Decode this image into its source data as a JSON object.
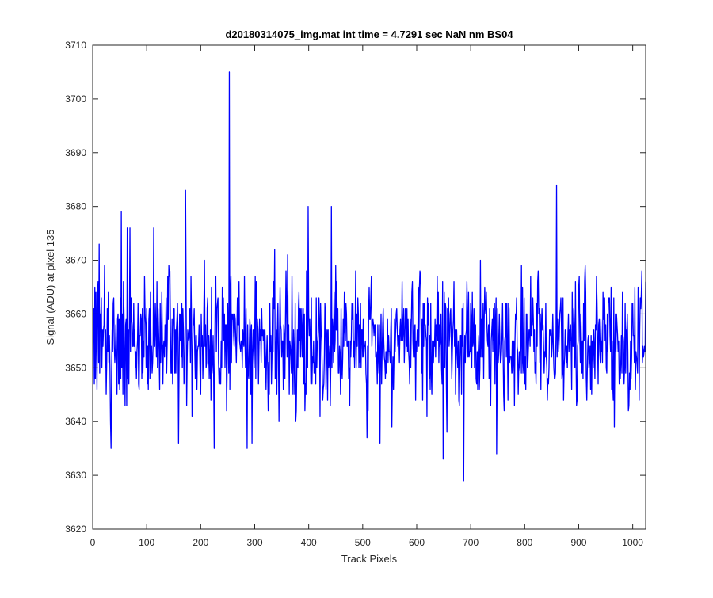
{
  "chart_data": {
    "type": "line",
    "title": "d20180314075_img.mat int time = 4.7291 sec  NaN nm BS04",
    "xlabel": "Track Pixels",
    "ylabel": "Signal (ADU) at pixel 135",
    "xlim": [
      0,
      1024
    ],
    "ylim": [
      3620,
      3710
    ],
    "xticks": [
      0,
      100,
      200,
      300,
      400,
      500,
      600,
      700,
      800,
      900,
      1000
    ],
    "yticks": [
      3620,
      3630,
      3640,
      3650,
      3660,
      3670,
      3680,
      3690,
      3700,
      3710
    ],
    "grid": false,
    "series": [
      {
        "color": "#0000ff",
        "n_points": 1024,
        "baseline_mean": 3655,
        "noise_amplitude_approx": 6,
        "highlighted_peaks": [
          {
            "x": 11,
            "y": 3673
          },
          {
            "x": 33,
            "y": 3635
          },
          {
            "x": 52,
            "y": 3679
          },
          {
            "x": 63,
            "y": 3676
          },
          {
            "x": 68,
            "y": 3676
          },
          {
            "x": 112,
            "y": 3676
          },
          {
            "x": 158,
            "y": 3636
          },
          {
            "x": 171,
            "y": 3683
          },
          {
            "x": 224,
            "y": 3635
          },
          {
            "x": 252,
            "y": 3705
          },
          {
            "x": 285,
            "y": 3635
          },
          {
            "x": 294,
            "y": 3636
          },
          {
            "x": 398,
            "y": 3680
          },
          {
            "x": 441,
            "y": 3680
          },
          {
            "x": 531,
            "y": 3636
          },
          {
            "x": 648,
            "y": 3633
          },
          {
            "x": 686,
            "y": 3629
          },
          {
            "x": 747,
            "y": 3634
          },
          {
            "x": 858,
            "y": 3684
          },
          {
            "x": 965,
            "y": 3639
          }
        ]
      }
    ]
  }
}
